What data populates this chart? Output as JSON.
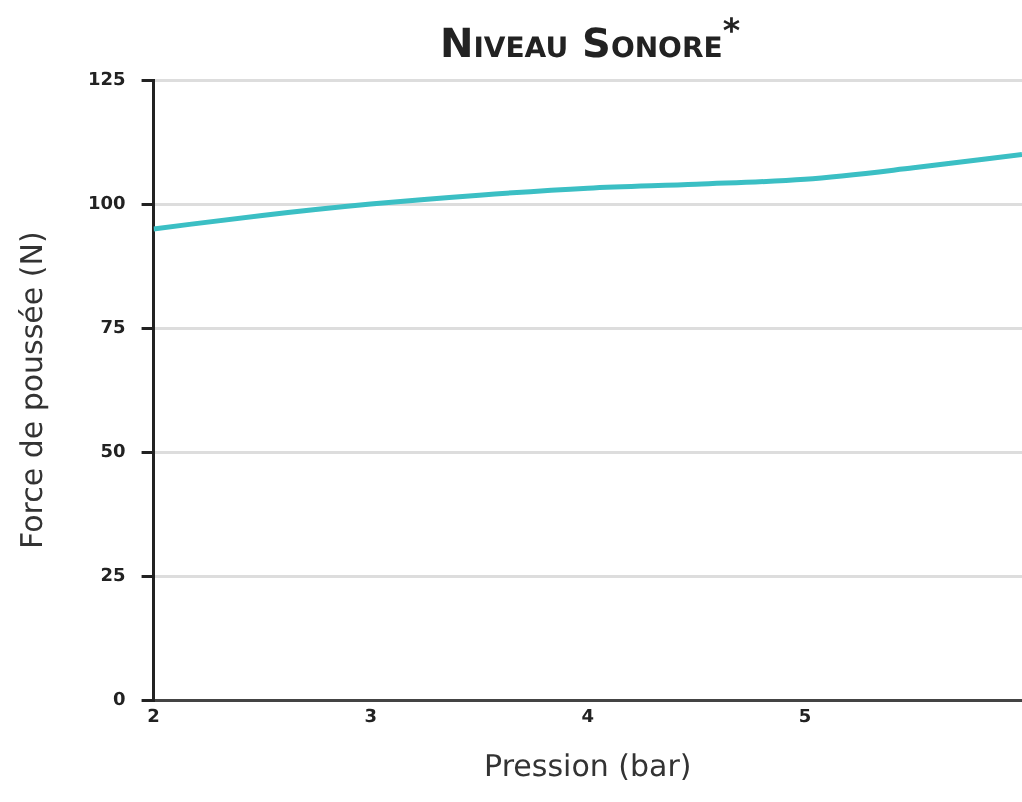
{
  "chart_data": {
    "type": "line",
    "title": "Niveau Sonore$^{*}$",
    "xlabel": "Pression (bar)",
    "ylabel": "Force de poussée (N)",
    "x": [
      2,
      2.5,
      3,
      3.5,
      4,
      4.5,
      5,
      5.5,
      6
    ],
    "series": [
      {
        "color": "#3bbfc4",
        "values": [
          95,
          97.7,
          100,
          101.8,
          103.2,
          104,
          105,
          107.3,
          110
        ]
      }
    ],
    "xlim": [
      2,
      6
    ],
    "xticks": [
      2,
      3,
      4,
      5
    ],
    "ylim": [
      0,
      125
    ],
    "yticks": [
      0,
      25,
      50,
      75,
      100,
      125
    ],
    "grid": "y",
    "legend": false,
    "marker": "none",
    "line_style": "solid"
  }
}
